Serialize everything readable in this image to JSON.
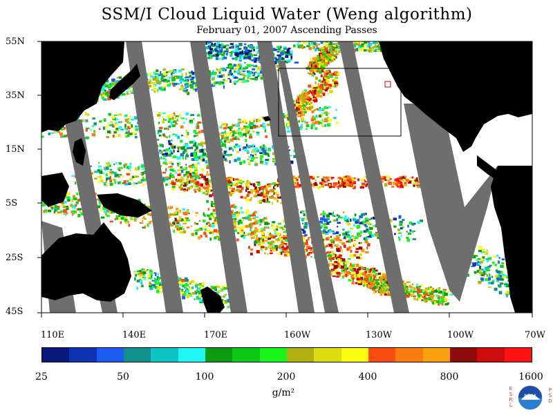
{
  "title": "SSM/I Cloud Liquid Water (Weng algorithm)",
  "subtitle": "February 01, 2007  Ascending Passes",
  "lat_labels": [
    "55N",
    "35N",
    "15N",
    "5S",
    "25S",
    "45S"
  ],
  "lon_labels": [
    "110E",
    "140E",
    "170E",
    "160W",
    "130W",
    "100W",
    "70W"
  ],
  "colorbar": {
    "colors": [
      "#0a1a7a",
      "#0e34b4",
      "#1c5cf2",
      "#10908c",
      "#10c4c4",
      "#20f6f6",
      "#0c9a10",
      "#10c818",
      "#18f41c",
      "#b0b010",
      "#dcdc10",
      "#fcfc10",
      "#f84c10",
      "#fc7c10",
      "#fca010",
      "#8c0c0c",
      "#cc0c0c",
      "#fc1010"
    ],
    "ticks": [
      "25",
      "50",
      "100",
      "200",
      "400",
      "800",
      "1600"
    ]
  },
  "unit": "g/m²",
  "logo": {
    "name": "NOAA",
    "left": "ESRL",
    "right": "PSD"
  },
  "colors": {
    "land": "#000000",
    "gap": "#6e6e6e",
    "ocean": "#ffffff"
  }
}
